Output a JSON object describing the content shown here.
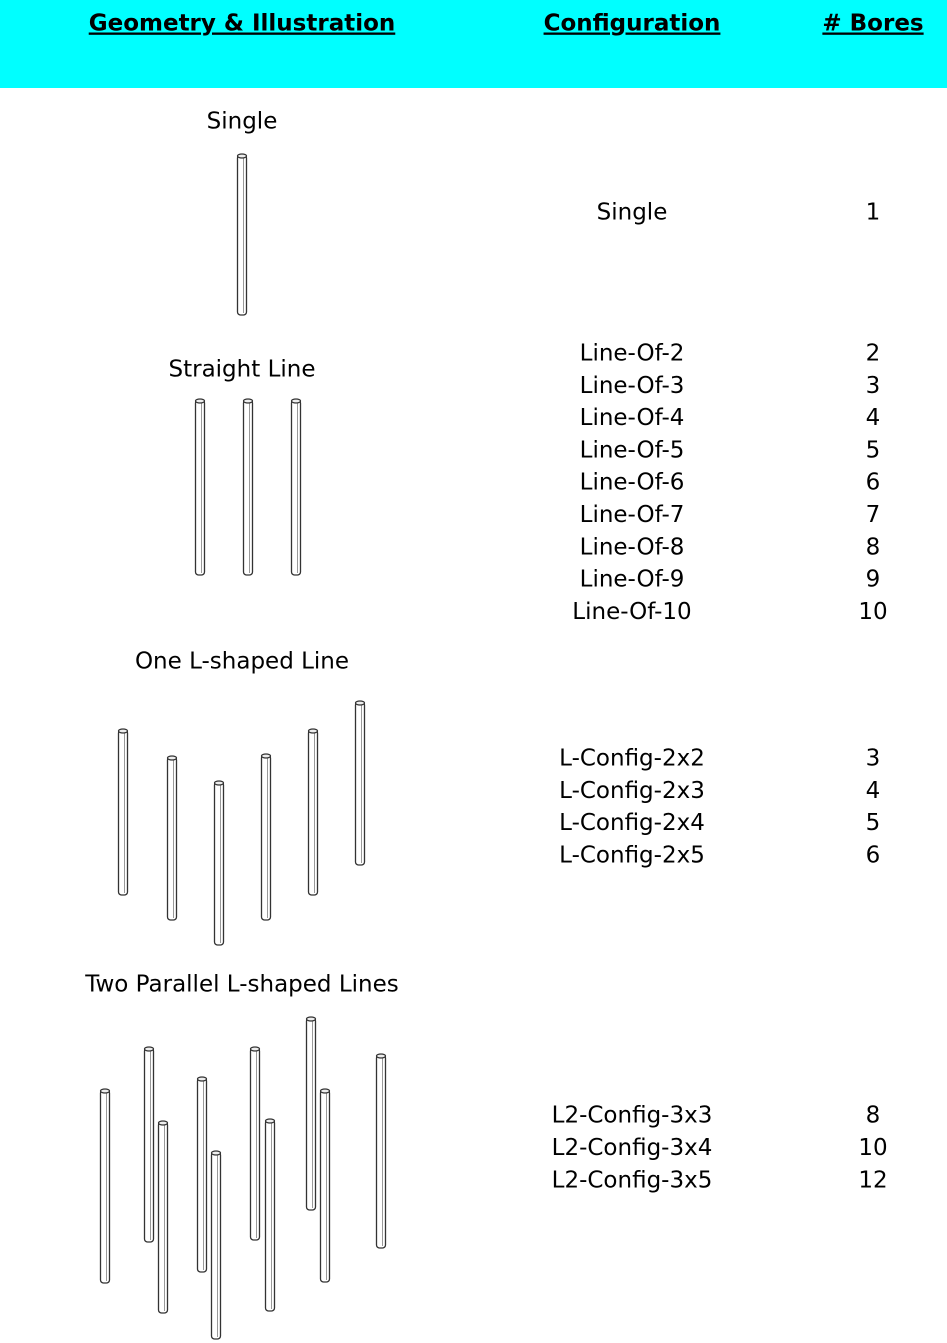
{
  "header": {
    "geometry": "Geometry & Illustration",
    "configuration": "Configuration",
    "bores": "# Bores"
  },
  "groups": [
    {
      "geometry": "Single",
      "configurations": [
        "Single"
      ],
      "bores": [
        1
      ]
    },
    {
      "geometry": "Straight Line",
      "configurations": [
        "Line-Of-2",
        "Line-Of-3",
        "Line-Of-4",
        "Line-Of-5",
        "Line-Of-6",
        "Line-Of-7",
        "Line-Of-8",
        "Line-Of-9",
        "Line-Of-10"
      ],
      "bores": [
        2,
        3,
        4,
        5,
        6,
        7,
        8,
        9,
        10
      ]
    },
    {
      "geometry": "One L-shaped Line",
      "configurations": [
        "L-Config-2x2",
        "L-Config-2x3",
        "L-Config-2x4",
        "L-Config-2x5"
      ],
      "bores": [
        3,
        4,
        5,
        6
      ]
    },
    {
      "geometry": "Two Parallel L-shaped Lines",
      "configurations": [
        "L2-Config-3x3",
        "L2-Config-3x4",
        "L2-Config-3x5"
      ],
      "bores": [
        8,
        10,
        12
      ]
    }
  ]
}
